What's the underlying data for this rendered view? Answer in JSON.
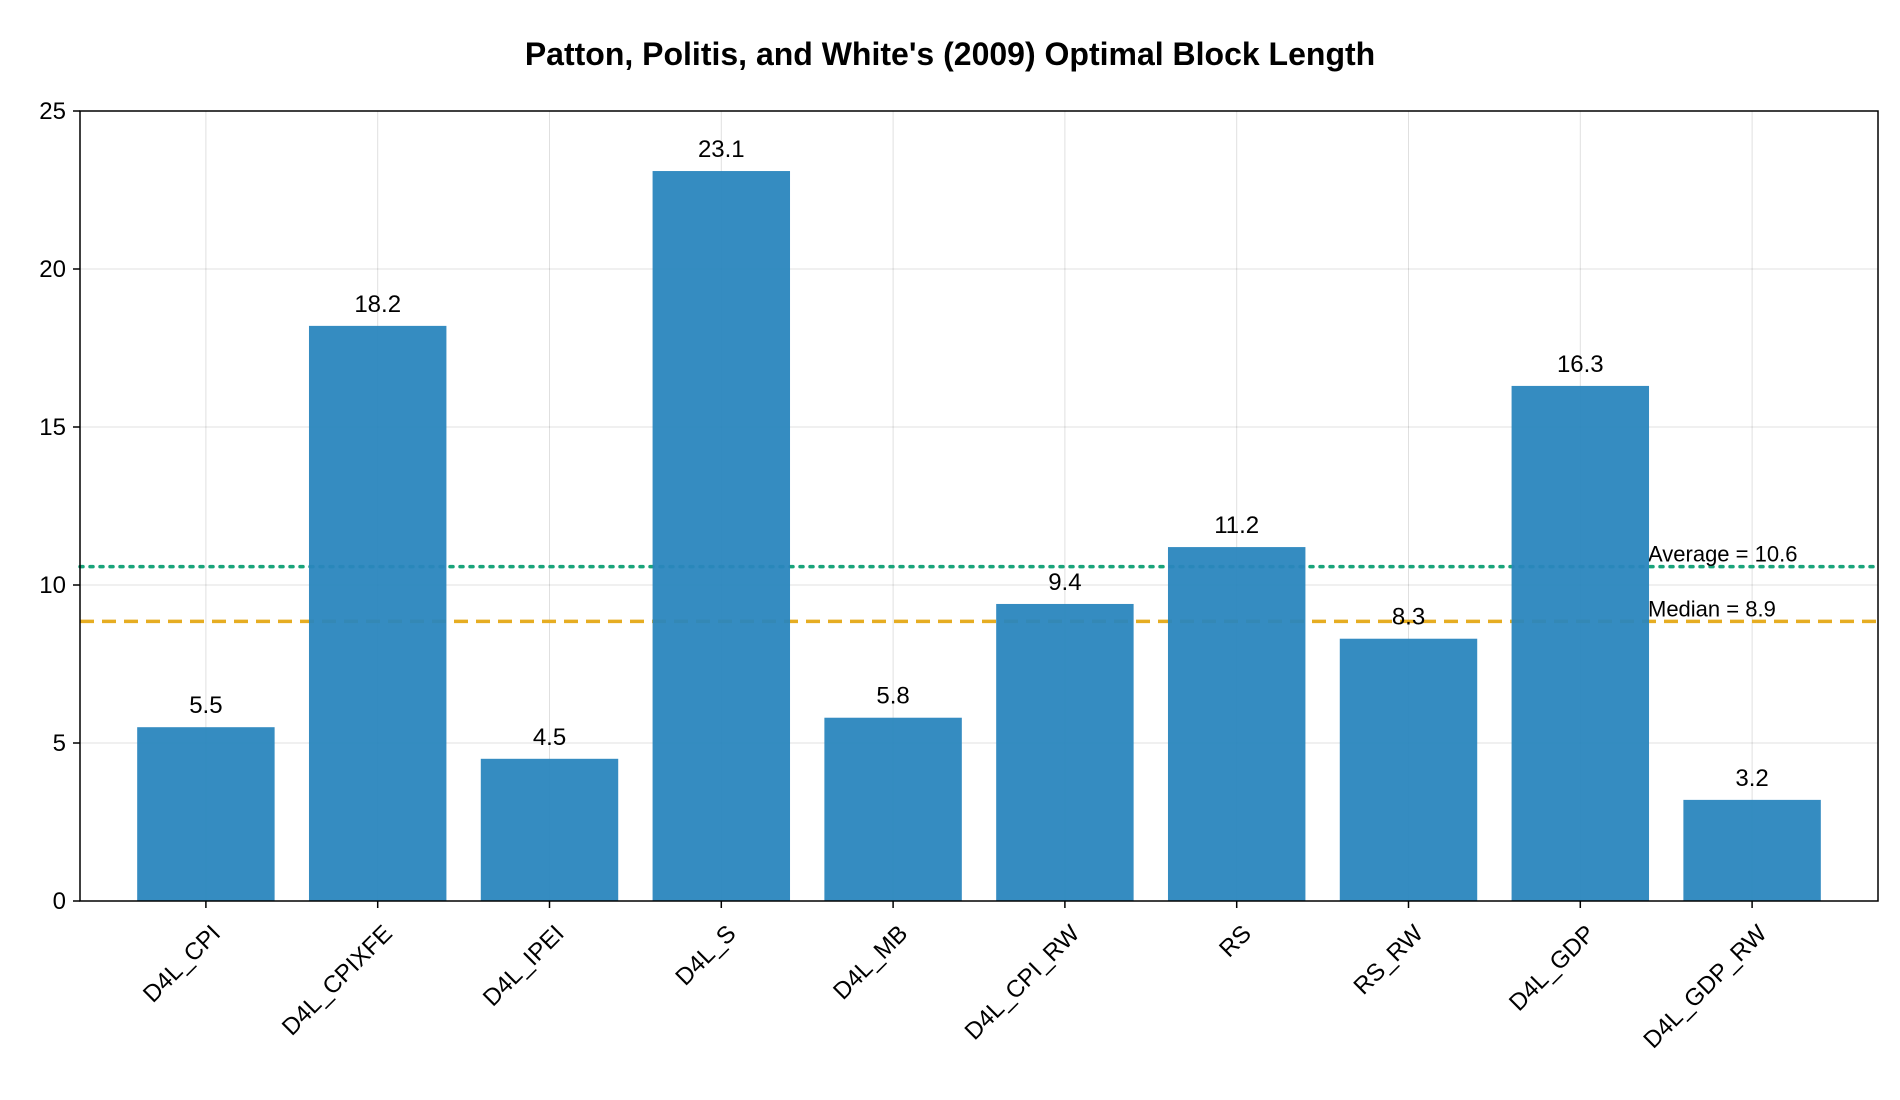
{
  "chart_data": {
    "type": "bar",
    "title": "Patton, Politis, and White's (2009) Optimal Block Length",
    "xlabel": "",
    "ylabel": "",
    "categories": [
      "D4L_CPI",
      "D4L_CPIXFE",
      "D4L_IPEI",
      "D4L_S",
      "D4L_MB",
      "D4L_CPI_RW",
      "RS",
      "RS_RW",
      "D4L_GDP",
      "D4L_GDP_RW"
    ],
    "values": [
      5.5,
      18.2,
      4.5,
      23.1,
      5.8,
      9.4,
      11.2,
      8.3,
      16.3,
      3.2
    ],
    "value_labels": [
      "5.5",
      "18.2",
      "4.5",
      "23.1",
      "5.8",
      "9.4",
      "11.2",
      "8.3",
      "16.3",
      "3.2"
    ],
    "ylim": [
      0,
      25
    ],
    "yticks": [
      0,
      5,
      10,
      15,
      20,
      25
    ],
    "ytick_labels": [
      "0",
      "5",
      "10",
      "15",
      "20",
      "25"
    ],
    "grid": true,
    "bar_color": "#2a86be",
    "reference_lines": [
      {
        "label": "Average = 10.6",
        "value": 10.58,
        "style": "dotted",
        "color": "#1aa37a"
      },
      {
        "label": "Median = 8.9",
        "value": 8.85,
        "style": "dashed",
        "color": "#e6ad22"
      }
    ]
  }
}
